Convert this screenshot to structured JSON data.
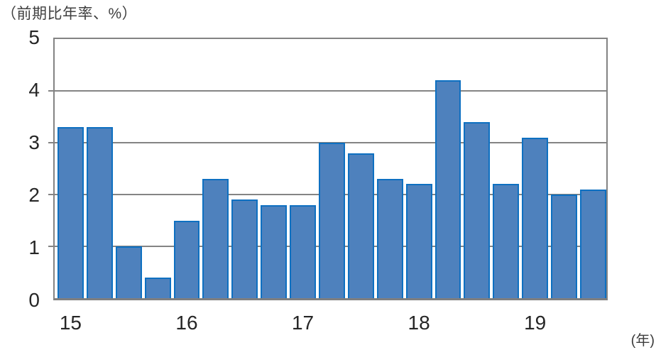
{
  "title": "（前期比年率、%）",
  "x_axis_unit": "(年)",
  "colors": {
    "bar_fill": "#4E81BD",
    "bar_border": "#0E70C1",
    "grid": "#848484",
    "tick_text": "#262626",
    "title_text": "#404040"
  },
  "chart_data": {
    "type": "bar",
    "title": "（前期比年率、%）",
    "categories": [
      "15Q1",
      "15Q2",
      "15Q3",
      "15Q4",
      "16Q1",
      "16Q2",
      "16Q3",
      "16Q4",
      "17Q1",
      "17Q2",
      "17Q3",
      "17Q4",
      "18Q1",
      "18Q2",
      "18Q3",
      "18Q4",
      "19Q1",
      "19Q2",
      "19Q3"
    ],
    "values": [
      3.3,
      3.3,
      1.0,
      0.4,
      1.5,
      2.3,
      1.9,
      1.8,
      1.8,
      3.0,
      2.8,
      2.3,
      2.2,
      4.2,
      3.4,
      2.2,
      3.1,
      2.0,
      2.1
    ],
    "x_year_labels": [
      "15",
      "16",
      "17",
      "18",
      "19"
    ],
    "xlabel": "(年)",
    "ylabel": "（前期比年率、%）",
    "ylim": [
      0,
      5
    ],
    "yticks": [
      0,
      1,
      2,
      3,
      4,
      5
    ],
    "grid": true,
    "legend": false,
    "bar_color": "#4E81BD",
    "bar_border_color": "#0E70C1"
  }
}
